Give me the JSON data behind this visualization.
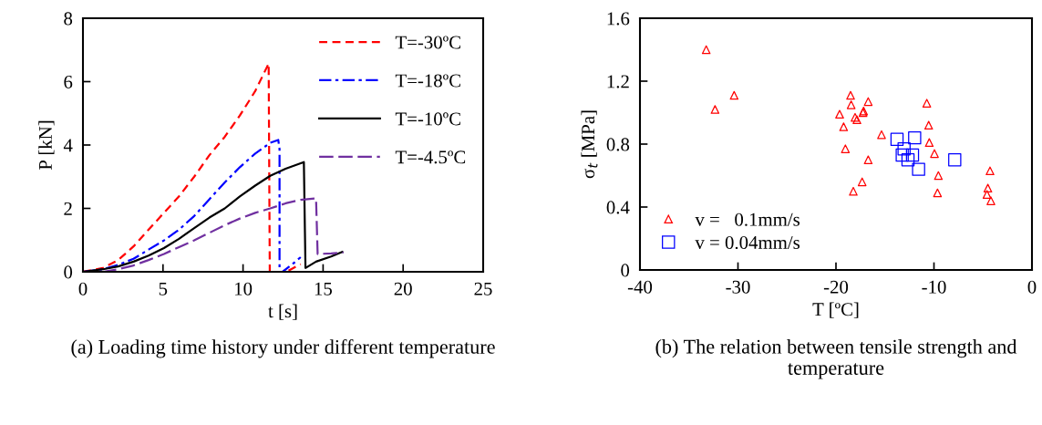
{
  "chart_data": [
    {
      "type": "line",
      "xlabel": "t [s]",
      "ylabel": "P [kN]",
      "xlim": [
        0,
        25
      ],
      "xticks": [
        0,
        5,
        10,
        15,
        20,
        25
      ],
      "ylim": [
        0,
        8
      ],
      "yticks": [
        0,
        2,
        4,
        6,
        8
      ],
      "legend": "top right",
      "grid": false,
      "marker": "none",
      "annotations": [
        "(a) Loading time history under different temperature"
      ],
      "series": [
        {
          "name": "T=-30ºC",
          "color": "#ff0000",
          "line_style": "dashed",
          "x": [
            0,
            1.25,
            2.2,
            3.16,
            4.1,
            5.06,
            6.0,
            6.95,
            7.9,
            8.86,
            9.8,
            10.76,
            11.6,
            11.67,
            11.9,
            12.7,
            13.6
          ],
          "values": [
            0,
            0.12,
            0.37,
            0.8,
            1.33,
            1.86,
            2.38,
            3.0,
            3.68,
            4.26,
            4.93,
            5.7,
            6.57,
            0,
            0,
            0,
            0.24
          ]
        },
        {
          "name": "T=-18ºC",
          "color": "#0000ff",
          "line_style": "dashdot",
          "x": [
            0,
            1.25,
            2.2,
            3.16,
            4.1,
            5.06,
            6.0,
            6.95,
            7.9,
            8.86,
            9.8,
            10.76,
            11.7,
            12.2,
            12.28,
            12.28,
            12.47,
            13.04,
            13.6
          ],
          "values": [
            0,
            0.08,
            0.22,
            0.41,
            0.7,
            0.99,
            1.33,
            1.76,
            2.29,
            2.82,
            3.3,
            3.73,
            4.07,
            4.16,
            3.87,
            0,
            0,
            0.22,
            0.46
          ]
        },
        {
          "name": "T=-10ºC",
          "color": "#000000",
          "line_style": "solid",
          "x": [
            0,
            1.25,
            2.2,
            3.16,
            4.1,
            5.06,
            6.0,
            6.95,
            7.9,
            8.86,
            9.8,
            10.76,
            11.7,
            12.66,
            13.8,
            13.9,
            14.56,
            15.5,
            16.2
          ],
          "values": [
            0,
            0.08,
            0.17,
            0.32,
            0.51,
            0.75,
            1.04,
            1.38,
            1.71,
            2.0,
            2.38,
            2.72,
            3.03,
            3.25,
            3.46,
            0.12,
            0.32,
            0.48,
            0.63
          ]
        },
        {
          "name": "T=-4.5ºC",
          "color": "#7030a0",
          "line_style": "longdash",
          "x": [
            0,
            1.25,
            2.2,
            3.16,
            4.1,
            5.06,
            6.0,
            6.95,
            7.9,
            8.86,
            9.8,
            10.76,
            11.7,
            12.66,
            13.6,
            14.56,
            14.66,
            15.5,
            16.27
          ],
          "values": [
            0,
            0,
            0.08,
            0.2,
            0.37,
            0.56,
            0.78,
            0.99,
            1.23,
            1.47,
            1.68,
            1.86,
            2.0,
            2.16,
            2.27,
            2.32,
            0.56,
            0.58,
            0.61
          ]
        }
      ]
    },
    {
      "type": "scatter",
      "xlabel": "T [ºC]",
      "ylabel": "σ$_{t}$ [MPa]",
      "xlim": [
        -40,
        0
      ],
      "xticks": [
        -40,
        -30,
        -20,
        -10,
        0
      ],
      "ylim": [
        0,
        1.6
      ],
      "yticks": [
        0,
        0.4,
        0.8,
        1.2,
        1.6
      ],
      "legend": "bottom left",
      "grid": false,
      "annotations": [
        "(b) The relation between tensile strength and temperature"
      ],
      "series": [
        {
          "name": "v =   0.1mm/s",
          "color": "#ff0000",
          "marker": "triangle",
          "x": [
            -33.24,
            -32.34,
            -30.39,
            -18.51,
            -18.45,
            -16.71,
            -19.63,
            -17.18,
            -17.24,
            -18.05,
            -17.86,
            -19.22,
            -15.35,
            -19.04,
            -16.71,
            -17.33,
            -18.23,
            -10.73,
            -10.54,
            -10.48,
            -9.95,
            -9.55,
            -9.64,
            -4.28,
            -4.5,
            -4.59,
            -4.19
          ],
          "values": [
            1.4,
            1.02,
            1.11,
            1.11,
            1.05,
            1.07,
            0.99,
            1.01,
            1.0,
            0.97,
            0.955,
            0.91,
            0.86,
            0.77,
            0.7,
            0.56,
            0.5,
            1.06,
            0.92,
            0.81,
            0.74,
            0.6,
            0.49,
            0.63,
            0.52,
            0.48,
            0.44
          ]
        },
        {
          "name": "v = 0.04mm/s",
          "color": "#0000ff",
          "marker": "square",
          "x": [
            -13.77,
            -11.97,
            -13.05,
            -13.24,
            -12.19,
            -12.65,
            -11.57,
            -7.88
          ],
          "values": [
            0.83,
            0.84,
            0.77,
            0.73,
            0.73,
            0.7,
            0.64,
            0.7
          ]
        }
      ]
    }
  ]
}
